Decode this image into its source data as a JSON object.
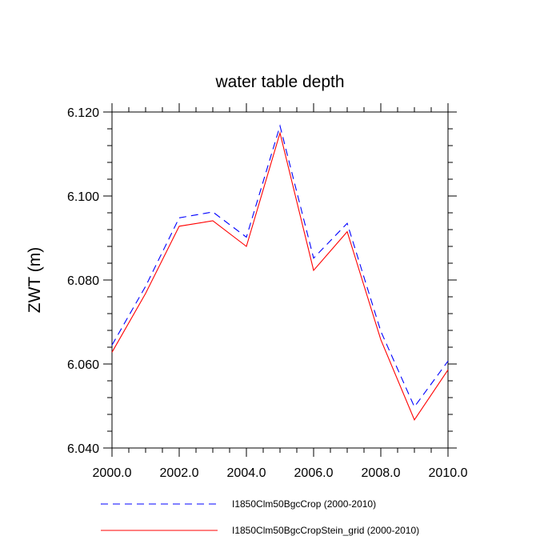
{
  "chart_data": {
    "type": "line",
    "title": "water table depth",
    "xlabel": "",
    "ylabel": "ZWT  (m)",
    "xlim": [
      2000,
      2010
    ],
    "ylim": [
      6.04,
      6.12
    ],
    "xticks": [
      2000,
      2002,
      2004,
      2006,
      2008,
      2010
    ],
    "xtick_labels": [
      "2000.0",
      "2002.0",
      "2004.0",
      "2006.0",
      "2008.0",
      "2010.0"
    ],
    "yticks": [
      6.04,
      6.06,
      6.08,
      6.1,
      6.12
    ],
    "ytick_labels": [
      "6.040",
      "6.060",
      "6.080",
      "6.100",
      "6.120"
    ],
    "grid": false,
    "legend_position": "bottom",
    "x": [
      2000,
      2001,
      2002,
      2003,
      2004,
      2005,
      2006,
      2007,
      2008,
      2009,
      2010
    ],
    "series": [
      {
        "name": "I1850Clm50BgcCrop (2000-2010)",
        "color": "#0000ff",
        "dash": true,
        "values": [
          6.0645,
          6.0785,
          6.0948,
          6.0962,
          6.0902,
          6.1167,
          6.0852,
          6.0935,
          6.0678,
          6.0498,
          6.0607
        ]
      },
      {
        "name": "I1850Clm50BgcCropStein_grid (2000-2010)",
        "color": "#ff0000",
        "dash": false,
        "values": [
          6.0628,
          6.0768,
          6.0928,
          6.0941,
          6.088,
          6.115,
          6.0823,
          6.0915,
          6.0658,
          6.0467,
          6.0586
        ]
      }
    ]
  }
}
